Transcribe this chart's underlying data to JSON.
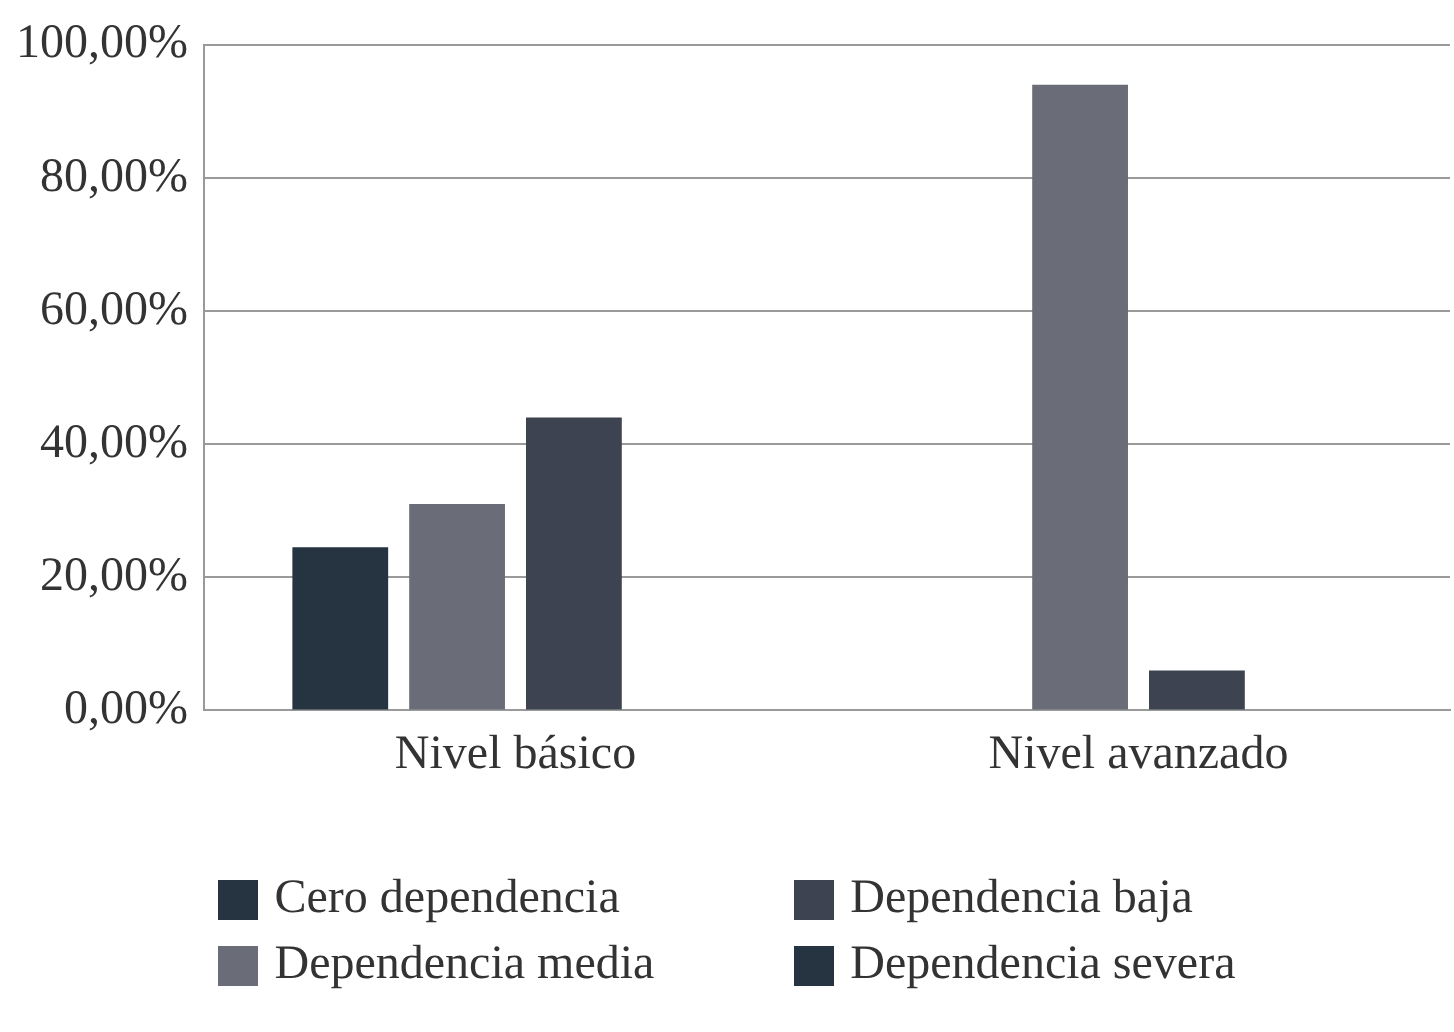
{
  "chart_data": {
    "type": "bar",
    "categories": [
      "Nivel básico",
      "Nivel avanzado"
    ],
    "series": [
      {
        "name": "Cero dependencia",
        "color": "#263340",
        "values": [
          24.5,
          null
        ]
      },
      {
        "name": "Dependencia media",
        "color": "#6a6d78",
        "values": [
          31,
          94
        ]
      },
      {
        "name": "Dependencia baja",
        "color": "#3d4350",
        "values": [
          44,
          6
        ]
      },
      {
        "name": "Dependencia severa",
        "color": "#263340",
        "values": [
          null,
          null
        ]
      }
    ],
    "ylim": [
      0,
      100
    ],
    "yticks": [
      {
        "value": 0,
        "label": "0,00%"
      },
      {
        "value": 20,
        "label": "20,00%"
      },
      {
        "value": 40,
        "label": "40,00%"
      },
      {
        "value": 60,
        "label": "60,00%"
      },
      {
        "value": 80,
        "label": "80,00%"
      },
      {
        "value": 100,
        "label": "100,00%"
      }
    ],
    "grid": "y",
    "legend": "bottom"
  }
}
